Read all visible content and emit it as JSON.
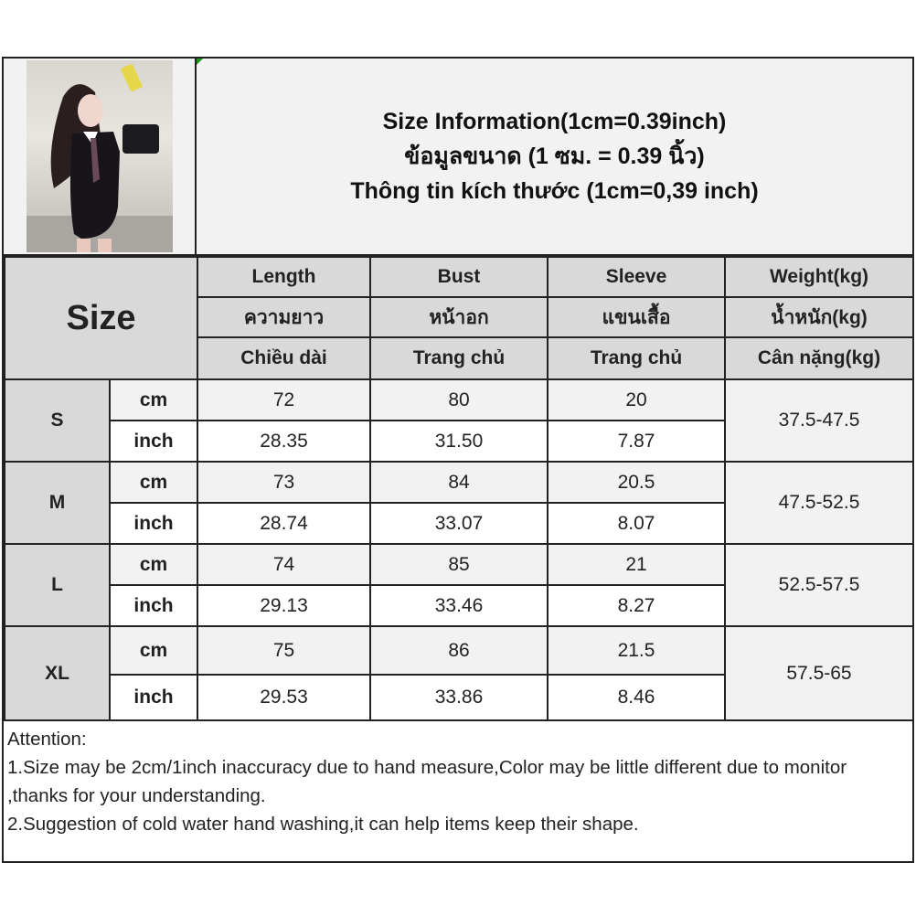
{
  "title_lines": [
    "Size Information(1cm=0.39inch)",
    "ข้อมูลขนาด (1 ซม. = 0.39 นิ้ว)",
    "Thông tin kích thước (1cm=0,39 inch)"
  ],
  "size_label": "Size",
  "columns": [
    {
      "en": "Length",
      "th": "ความยาว",
      "vi": "Chiều dài"
    },
    {
      "en": "Bust",
      "th": "หน้าอก",
      "vi": "Trang chủ"
    },
    {
      "en": "Sleeve",
      "th": "แขนเสื้อ",
      "vi": "Trang chủ"
    },
    {
      "en": "Weight(kg)",
      "th": "น้ำหนัก(kg)",
      "vi": "Cân nặng(kg)"
    }
  ],
  "units": {
    "cm": "cm",
    "inch": "inch"
  },
  "rows": [
    {
      "size": "S",
      "cm": [
        "72",
        "80",
        "20"
      ],
      "inch": [
        "28.35",
        "31.50",
        "7.87"
      ],
      "weight": "37.5-47.5"
    },
    {
      "size": "M",
      "cm": [
        "73",
        "84",
        "20.5"
      ],
      "inch": [
        "28.74",
        "33.07",
        "8.07"
      ],
      "weight": "47.5-52.5"
    },
    {
      "size": "L",
      "cm": [
        "74",
        "85",
        "21"
      ],
      "inch": [
        "29.13",
        "33.46",
        "8.27"
      ],
      "weight": "52.5-57.5"
    },
    {
      "size": "XL",
      "cm": [
        "75",
        "86",
        "21.5"
      ],
      "inch": [
        "29.53",
        "33.86",
        "8.46"
      ],
      "weight": "57.5-65"
    }
  ],
  "notes": [
    "Attention:",
    "1.Size may be 2cm/1inch inaccuracy due to hand measure,Color may be little different due to monitor ,thanks for your understanding.",
    "2.Suggestion of cold water hand washing,it can help items keep their shape."
  ]
}
